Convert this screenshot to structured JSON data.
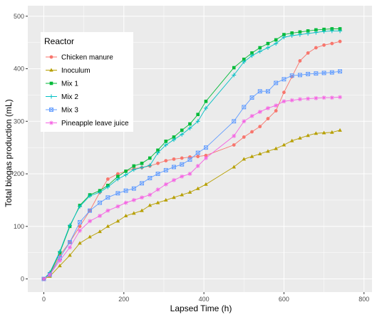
{
  "chart_data": {
    "type": "line",
    "title": "",
    "xlabel": "Lapsed Time (h)",
    "ylabel": "Total biogas production (mL)",
    "xlim": [
      -40,
      820
    ],
    "ylim": [
      -25,
      520
    ],
    "x_ticks": [
      0,
      200,
      400,
      600,
      800
    ],
    "y_ticks": [
      0,
      100,
      200,
      300,
      400,
      500
    ],
    "grid": true,
    "legend_title": "Reactor",
    "legend_position": "top-left",
    "series": [
      {
        "name": "Chicken manure",
        "color": "#F8766D",
        "marker": "circle",
        "x": [
          0,
          15,
          40,
          65,
          90,
          115,
          140,
          160,
          185,
          205,
          225,
          245,
          265,
          285,
          305,
          325,
          345,
          365,
          385,
          405,
          475,
          500,
          520,
          540,
          560,
          580,
          600,
          620,
          640,
          660,
          680,
          700,
          720,
          740
        ],
        "y": [
          0,
          8,
          45,
          70,
          100,
          130,
          165,
          190,
          200,
          205,
          210,
          212,
          215,
          220,
          225,
          228,
          230,
          232,
          233,
          235,
          255,
          270,
          280,
          290,
          305,
          320,
          355,
          385,
          415,
          430,
          440,
          445,
          448,
          452
        ]
      },
      {
        "name": "Inoculum",
        "color": "#B79F00",
        "marker": "triangle",
        "x": [
          0,
          15,
          40,
          65,
          90,
          115,
          140,
          160,
          185,
          205,
          225,
          245,
          265,
          285,
          305,
          325,
          345,
          365,
          385,
          405,
          475,
          500,
          520,
          540,
          560,
          580,
          600,
          620,
          640,
          660,
          680,
          700,
          720,
          740
        ],
        "y": [
          0,
          5,
          25,
          45,
          68,
          80,
          90,
          100,
          110,
          120,
          125,
          130,
          140,
          145,
          150,
          155,
          160,
          165,
          172,
          180,
          213,
          228,
          233,
          238,
          243,
          248,
          255,
          263,
          268,
          273,
          277,
          278,
          279,
          283
        ]
      },
      {
        "name": "Mix 1",
        "color": "#00BA38",
        "marker": "square",
        "x": [
          0,
          15,
          40,
          65,
          90,
          115,
          140,
          160,
          185,
          205,
          225,
          245,
          265,
          285,
          305,
          325,
          345,
          365,
          385,
          405,
          475,
          500,
          520,
          540,
          560,
          580,
          600,
          620,
          640,
          660,
          680,
          700,
          720,
          740
        ],
        "y": [
          0,
          10,
          50,
          100,
          140,
          160,
          168,
          178,
          195,
          205,
          215,
          220,
          230,
          245,
          262,
          270,
          283,
          295,
          313,
          338,
          402,
          418,
          430,
          440,
          448,
          455,
          465,
          468,
          470,
          472,
          474,
          475,
          476,
          476
        ]
      },
      {
        "name": "Mix 2",
        "color": "#00BFC4",
        "marker": "plus",
        "x": [
          0,
          15,
          40,
          65,
          90,
          115,
          140,
          160,
          185,
          205,
          225,
          245,
          265,
          285,
          305,
          325,
          345,
          365,
          385,
          405,
          475,
          500,
          520,
          540,
          560,
          580,
          600,
          620,
          640,
          660,
          680,
          700,
          720,
          740
        ],
        "y": [
          0,
          12,
          52,
          102,
          138,
          158,
          165,
          175,
          190,
          198,
          208,
          212,
          216,
          240,
          255,
          265,
          275,
          287,
          300,
          325,
          388,
          413,
          425,
          433,
          440,
          448,
          460,
          463,
          465,
          467,
          469,
          471,
          472,
          472
        ]
      },
      {
        "name": "Mix 3",
        "color": "#619CFF",
        "marker": "square-cross",
        "x": [
          0,
          15,
          40,
          65,
          90,
          115,
          140,
          160,
          185,
          205,
          225,
          245,
          265,
          285,
          305,
          325,
          345,
          365,
          385,
          405,
          475,
          500,
          520,
          540,
          560,
          580,
          600,
          620,
          640,
          660,
          680,
          700,
          720,
          740
        ],
        "y": [
          0,
          8,
          40,
          70,
          108,
          130,
          145,
          155,
          163,
          168,
          172,
          182,
          192,
          200,
          207,
          213,
          218,
          227,
          240,
          250,
          300,
          327,
          345,
          357,
          357,
          373,
          380,
          387,
          388,
          390,
          391,
          392,
          393,
          395
        ]
      },
      {
        "name": "Pineapple leave juice",
        "color": "#F564E3",
        "marker": "asterisk",
        "x": [
          0,
          15,
          40,
          65,
          90,
          115,
          140,
          160,
          185,
          205,
          225,
          245,
          265,
          285,
          305,
          325,
          345,
          365,
          385,
          405,
          475,
          500,
          520,
          540,
          560,
          580,
          600,
          620,
          640,
          660,
          680,
          700,
          720,
          740
        ],
        "y": [
          0,
          8,
          35,
          60,
          92,
          110,
          120,
          130,
          138,
          145,
          150,
          155,
          160,
          170,
          180,
          188,
          195,
          200,
          215,
          230,
          272,
          300,
          310,
          318,
          325,
          330,
          338,
          340,
          342,
          343,
          344,
          345,
          345,
          346
        ]
      }
    ]
  }
}
